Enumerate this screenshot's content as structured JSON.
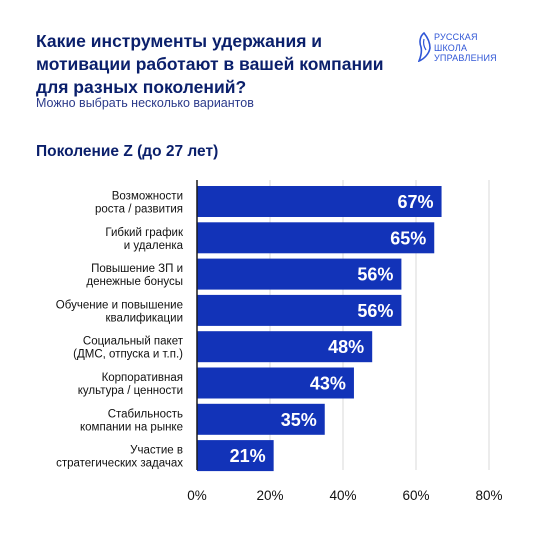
{
  "title": "Какие инструменты удержания и мотивации работают в вашей компании для разных поколений?",
  "subtitle": "Можно выбрать несколько вариантов",
  "logo": {
    "lines": [
      "РУССКАЯ",
      "ШКОЛА",
      "УПРАВЛЕНИЯ"
    ],
    "icon": "bird-profile-icon"
  },
  "section_title": "Поколение Z (до 27 лет)",
  "colors": {
    "bar": "#1233b8",
    "title": "#0a1f6b",
    "grid": "#d9d9d9",
    "axis": "#1a1a1a"
  },
  "chart_data": {
    "type": "bar",
    "orientation": "horizontal",
    "categories": [
      [
        "Возможности",
        "роста / развития"
      ],
      [
        "Гибкий график",
        "и удаленка"
      ],
      [
        "Повышение ЗП и",
        "денежные бонусы"
      ],
      [
        "Обучение и повышение",
        "квалификации"
      ],
      [
        "Социальный пакет",
        "(ДМС, отпуска и т.п.)"
      ],
      [
        "Корпоративная",
        "культура / ценности"
      ],
      [
        "Стабильность",
        "компании на рынке"
      ],
      [
        "Участие в",
        "стратегических задачах"
      ]
    ],
    "values": [
      67,
      65,
      56,
      56,
      48,
      43,
      35,
      21
    ],
    "value_labels": [
      "67%",
      "65%",
      "56%",
      "56%",
      "48%",
      "43%",
      "35%",
      "21%"
    ],
    "xlim": [
      0,
      80
    ],
    "xticks": [
      0,
      20,
      40,
      60,
      80
    ],
    "xtick_labels": [
      "0%",
      "20%",
      "40%",
      "60%",
      "80%"
    ],
    "grid": true
  }
}
